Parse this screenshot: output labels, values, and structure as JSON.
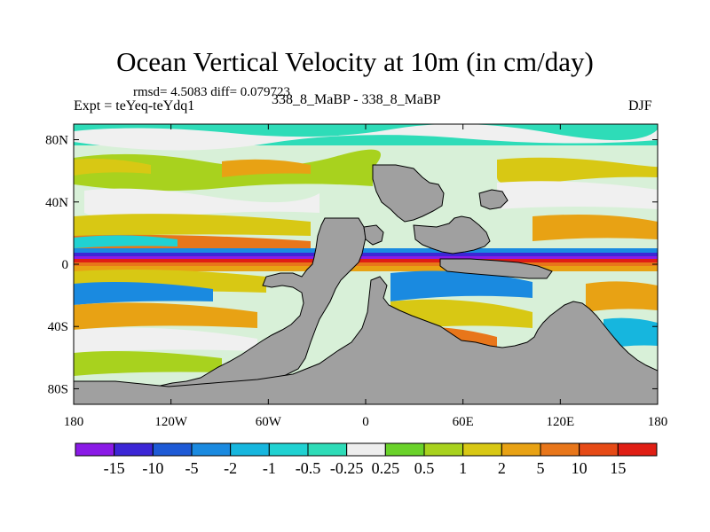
{
  "title": "Ocean Vertical Velocity at 10m (in cm/day)",
  "stats_line": "rmsd= 4.5083 diff= 0.079723",
  "experiment_label": "Expt = teYeq-teYdq1",
  "case_label": "338_8_MaBP - 338_8_MaBP",
  "season_label": "DJF",
  "map": {
    "lat_range": [
      -90,
      90
    ],
    "lon_range": [
      -180,
      180
    ],
    "lat_ticks": [
      {
        "value": 80,
        "label": "80N"
      },
      {
        "value": 40,
        "label": "40N"
      },
      {
        "value": 0,
        "label": "0"
      },
      {
        "value": -40,
        "label": "40S"
      },
      {
        "value": -80,
        "label": "80S"
      }
    ],
    "lon_ticks": [
      {
        "value": -180,
        "label": "180"
      },
      {
        "value": -120,
        "label": "120W"
      },
      {
        "value": -60,
        "label": "60W"
      },
      {
        "value": 0,
        "label": "0"
      },
      {
        "value": 60,
        "label": "60E"
      },
      {
        "value": 120,
        "label": "120E"
      },
      {
        "value": 180,
        "label": "180"
      }
    ],
    "land_color": "#a0a0a0",
    "ocean_background": "#d8f0d8"
  },
  "colorbar": {
    "labels": [
      "-15",
      "-10",
      "-5",
      "-2",
      "-1",
      "-0.5",
      "-0.25",
      "0.25",
      "0.5",
      "1",
      "2",
      "5",
      "10",
      "15"
    ],
    "colors": [
      "#8a1ae6",
      "#3c26d6",
      "#1e5ad6",
      "#1a8ae0",
      "#16b6de",
      "#20d2d2",
      "#2edcb8",
      "#eeeeee",
      "#6ad22a",
      "#a8d21e",
      "#d8c814",
      "#e8a214",
      "#e8761a",
      "#e64a16",
      "#e01e14"
    ]
  }
}
